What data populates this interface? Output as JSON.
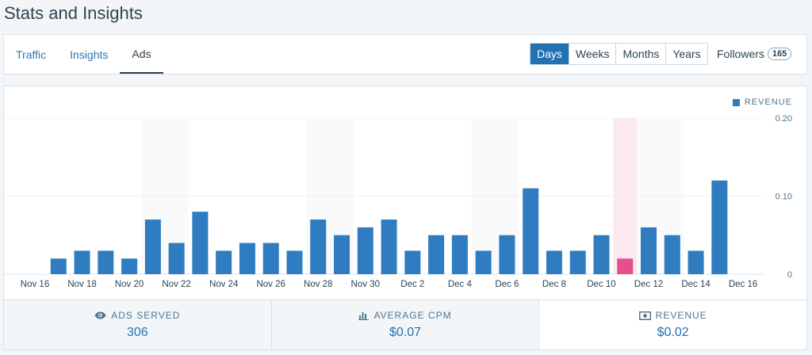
{
  "page": {
    "title": "Stats and Insights"
  },
  "tabs": [
    {
      "label": "Traffic",
      "active": false
    },
    {
      "label": "Insights",
      "active": false
    },
    {
      "label": "Ads",
      "active": true
    }
  ],
  "period": [
    {
      "label": "Days",
      "active": true
    },
    {
      "label": "Weeks",
      "active": false
    },
    {
      "label": "Months",
      "active": false
    },
    {
      "label": "Years",
      "active": false
    }
  ],
  "followers": {
    "label": "Followers",
    "count": "165"
  },
  "colors": {
    "bar": "#2f7cc1",
    "highlight_bar": "#e5508c",
    "highlight_band": "#fbe9ef",
    "weekend_band": "#f9fafb",
    "accent": "#2271b1"
  },
  "chart_data": {
    "type": "bar",
    "legend": "REVENUE",
    "legend_position": "top-right",
    "ylim": [
      0,
      0.2
    ],
    "yticks": [
      "0.20",
      "0.10",
      "0"
    ],
    "x_tick_labels": [
      "Nov 16",
      "Nov 18",
      "Nov 20",
      "Nov 22",
      "Nov 24",
      "Nov 26",
      "Nov 28",
      "Nov 30",
      "Dec 2",
      "Dec 4",
      "Dec 6",
      "Dec 8",
      "Dec 10",
      "Dec 12",
      "Dec 14",
      "Dec 16"
    ],
    "categories": [
      "Nov 16",
      "Nov 17",
      "Nov 18",
      "Nov 19",
      "Nov 20",
      "Nov 21",
      "Nov 22",
      "Nov 23",
      "Nov 24",
      "Nov 25",
      "Nov 26",
      "Nov 27",
      "Nov 28",
      "Nov 29",
      "Nov 30",
      "Dec 1",
      "Dec 2",
      "Dec 3",
      "Dec 4",
      "Dec 5",
      "Dec 6",
      "Dec 7",
      "Dec 8",
      "Dec 9",
      "Dec 10",
      "Dec 11",
      "Dec 12",
      "Dec 13",
      "Dec 14",
      "Dec 15",
      "Dec 16"
    ],
    "values": [
      0,
      0.02,
      0.03,
      0.03,
      0.02,
      0.07,
      0.04,
      0.08,
      0.03,
      0.04,
      0.04,
      0.03,
      0.07,
      0.05,
      0.06,
      0.07,
      0.03,
      0.05,
      0.05,
      0.03,
      0.05,
      0.11,
      0.03,
      0.03,
      0.05,
      0.02,
      0.06,
      0.05,
      0.03,
      0.12,
      0
    ],
    "highlighted_category": "Dec 11",
    "grid": true
  },
  "stats": [
    {
      "icon": "eye-icon",
      "label": "Ads Served",
      "value": "306",
      "selected": false
    },
    {
      "icon": "bar-chart-icon",
      "label": "Average CPM",
      "value": "$0.07",
      "selected": false
    },
    {
      "icon": "money-icon",
      "label": "Revenue",
      "value": "$0.02",
      "selected": true
    }
  ]
}
